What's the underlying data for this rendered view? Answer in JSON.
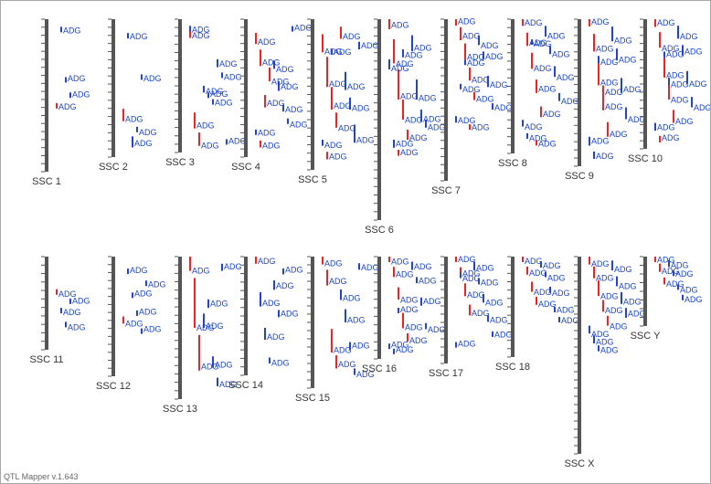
{
  "app": {
    "footer": "QTL Mapper v.1.643"
  },
  "colors": {
    "chromosome": "#555555",
    "tick": "#555555",
    "qtl_red": "#ee2222",
    "qtl_blue": "#2244cc",
    "label": "#1a44cc",
    "chr_label": "#333333"
  },
  "trait_label": "ADG",
  "chromosomes": [
    {
      "name": "SSC 1",
      "row": 0,
      "qtl": [
        [
          0.55,
          0.03,
          "r"
        ],
        [
          0.05,
          0.02,
          "b"
        ],
        [
          0.38,
          0.02,
          "b"
        ],
        [
          0.48,
          0.03,
          "b"
        ]
      ]
    },
    {
      "name": "SSC 2",
      "row": 0,
      "qtl": [
        [
          0.65,
          0.09,
          "r"
        ],
        [
          0.1,
          0.04,
          "b"
        ],
        [
          0.85,
          0.08,
          "b"
        ],
        [
          0.78,
          0.03,
          "b"
        ],
        [
          0.4,
          0.03,
          "b"
        ]
      ]
    },
    {
      "name": "SSC 3",
      "row": 0,
      "qtl": [
        [
          0.08,
          0.06,
          "r"
        ],
        [
          0.7,
          0.12,
          "r"
        ],
        [
          0.85,
          0.1,
          "r"
        ],
        [
          0.5,
          0.05,
          "b"
        ],
        [
          0.55,
          0.04,
          "b"
        ],
        [
          0.6,
          0.04,
          "b"
        ],
        [
          0.3,
          0.06,
          "b"
        ],
        [
          0.4,
          0.04,
          "b"
        ],
        [
          0.9,
          0.04,
          "b"
        ],
        [
          0.05,
          0.03,
          "b"
        ]
      ]
    },
    {
      "name": "SSC 4",
      "row": 0,
      "qtl": [
        [
          0.1,
          0.08,
          "r"
        ],
        [
          0.22,
          0.12,
          "r"
        ],
        [
          0.55,
          0.09,
          "r"
        ],
        [
          0.35,
          0.1,
          "r"
        ],
        [
          0.3,
          0.06,
          "b"
        ],
        [
          0.45,
          0.07,
          "b"
        ],
        [
          0.62,
          0.05,
          "b"
        ],
        [
          0.72,
          0.04,
          "b"
        ],
        [
          0.05,
          0.04,
          "b"
        ],
        [
          0.8,
          0.03,
          "b"
        ],
        [
          0.88,
          0.05,
          "r"
        ]
      ]
    },
    {
      "name": "SSC 5",
      "row": 0,
      "qtl": [
        [
          0.1,
          0.12,
          "r"
        ],
        [
          0.25,
          0.2,
          "r"
        ],
        [
          0.45,
          0.15,
          "r"
        ],
        [
          0.62,
          0.1,
          "r"
        ],
        [
          0.05,
          0.08,
          "r"
        ],
        [
          0.35,
          0.12,
          "b"
        ],
        [
          0.52,
          0.08,
          "b"
        ],
        [
          0.7,
          0.12,
          "b"
        ],
        [
          0.15,
          0.05,
          "b"
        ],
        [
          0.8,
          0.04,
          "b"
        ],
        [
          0.88,
          0.05,
          "r"
        ],
        [
          0.2,
          0.03,
          "b"
        ]
      ]
    },
    {
      "name": "SSC 6",
      "row": 0,
      "qtl": [
        [
          0.0,
          0.05,
          "r"
        ],
        [
          0.1,
          0.12,
          "r"
        ],
        [
          0.25,
          0.15,
          "r"
        ],
        [
          0.4,
          0.1,
          "r"
        ],
        [
          0.55,
          0.05,
          "r"
        ],
        [
          0.08,
          0.08,
          "b"
        ],
        [
          0.3,
          0.1,
          "b"
        ],
        [
          0.45,
          0.06,
          "b"
        ],
        [
          0.5,
          0.04,
          "b"
        ],
        [
          0.2,
          0.05,
          "b"
        ],
        [
          0.6,
          0.04,
          "b"
        ],
        [
          0.65,
          0.03,
          "r"
        ],
        [
          0.15,
          0.04,
          "b"
        ]
      ]
    },
    {
      "name": "SSC 7",
      "row": 0,
      "qtl": [
        [
          0.0,
          0.04,
          "r"
        ],
        [
          0.05,
          0.08,
          "r"
        ],
        [
          0.15,
          0.1,
          "r"
        ],
        [
          0.3,
          0.08,
          "r"
        ],
        [
          0.45,
          0.05,
          "r"
        ],
        [
          0.1,
          0.06,
          "b"
        ],
        [
          0.2,
          0.05,
          "b"
        ],
        [
          0.35,
          0.07,
          "b"
        ],
        [
          0.52,
          0.04,
          "b"
        ],
        [
          0.6,
          0.04,
          "b"
        ],
        [
          0.4,
          0.03,
          "b"
        ],
        [
          0.25,
          0.03,
          "b"
        ],
        [
          0.65,
          0.03,
          "r"
        ]
      ]
    },
    {
      "name": "SSC 8",
      "row": 0,
      "qtl": [
        [
          0.0,
          0.05,
          "r"
        ],
        [
          0.1,
          0.1,
          "r"
        ],
        [
          0.25,
          0.12,
          "r"
        ],
        [
          0.45,
          0.1,
          "r"
        ],
        [
          0.65,
          0.08,
          "r"
        ],
        [
          0.05,
          0.08,
          "b"
        ],
        [
          0.2,
          0.06,
          "b"
        ],
        [
          0.35,
          0.08,
          "b"
        ],
        [
          0.55,
          0.06,
          "b"
        ],
        [
          0.75,
          0.05,
          "b"
        ],
        [
          0.85,
          0.04,
          "b"
        ],
        [
          0.15,
          0.04,
          "b"
        ],
        [
          0.9,
          0.04,
          "r"
        ]
      ]
    },
    {
      "name": "SSC 9",
      "row": 0,
      "qtl": [
        [
          0.0,
          0.05,
          "r"
        ],
        [
          0.1,
          0.12,
          "r"
        ],
        [
          0.3,
          0.15,
          "r"
        ],
        [
          0.5,
          0.12,
          "r"
        ],
        [
          0.7,
          0.1,
          "r"
        ],
        [
          0.05,
          0.1,
          "b"
        ],
        [
          0.2,
          0.08,
          "b"
        ],
        [
          0.4,
          0.1,
          "b"
        ],
        [
          0.6,
          0.08,
          "b"
        ],
        [
          0.8,
          0.06,
          "b"
        ],
        [
          0.9,
          0.05,
          "b"
        ],
        [
          0.25,
          0.05,
          "b"
        ],
        [
          0.45,
          0.06,
          "r"
        ]
      ]
    },
    {
      "name": "SSC 10",
      "row": 0,
      "qtl": [
        [
          0.0,
          0.06,
          "r"
        ],
        [
          0.1,
          0.12,
          "r"
        ],
        [
          0.3,
          0.15,
          "r"
        ],
        [
          0.5,
          0.12,
          "r"
        ],
        [
          0.7,
          0.1,
          "r"
        ],
        [
          0.05,
          0.1,
          "b"
        ],
        [
          0.2,
          0.08,
          "b"
        ],
        [
          0.4,
          0.1,
          "b"
        ],
        [
          0.6,
          0.08,
          "b"
        ],
        [
          0.8,
          0.06,
          "b"
        ],
        [
          0.9,
          0.05,
          "r"
        ],
        [
          0.25,
          0.05,
          "b"
        ],
        [
          0.45,
          0.06,
          "b"
        ]
      ]
    },
    {
      "name": "SSC 11",
      "row": 1,
      "qtl": [
        [
          0.35,
          0.05,
          "r"
        ],
        [
          0.55,
          0.05,
          "b"
        ],
        [
          0.7,
          0.04,
          "b"
        ],
        [
          0.45,
          0.03,
          "b"
        ]
      ]
    },
    {
      "name": "SSC 12",
      "row": 1,
      "qtl": [
        [
          0.5,
          0.06,
          "r"
        ],
        [
          0.1,
          0.04,
          "b"
        ],
        [
          0.3,
          0.03,
          "b"
        ],
        [
          0.45,
          0.04,
          "b"
        ],
        [
          0.6,
          0.03,
          "b"
        ],
        [
          0.2,
          0.03,
          "b"
        ]
      ]
    },
    {
      "name": "SSC 13",
      "row": 1,
      "qtl": [
        [
          0.0,
          0.1,
          "r"
        ],
        [
          0.15,
          0.35,
          "r"
        ],
        [
          0.55,
          0.25,
          "r"
        ],
        [
          0.4,
          0.1,
          "b"
        ],
        [
          0.3,
          0.06,
          "b"
        ],
        [
          0.7,
          0.08,
          "b"
        ],
        [
          0.85,
          0.06,
          "b"
        ],
        [
          0.05,
          0.05,
          "b"
        ]
      ]
    },
    {
      "name": "SSC 14",
      "row": 1,
      "qtl": [
        [
          0.0,
          0.06,
          "r"
        ],
        [
          0.3,
          0.12,
          "b"
        ],
        [
          0.6,
          0.1,
          "b"
        ],
        [
          0.85,
          0.05,
          "b"
        ],
        [
          0.2,
          0.08,
          "b"
        ],
        [
          0.45,
          0.06,
          "b"
        ],
        [
          0.1,
          0.05,
          "b"
        ]
      ]
    },
    {
      "name": "SSC 15",
      "row": 1,
      "qtl": [
        [
          0.0,
          0.06,
          "r"
        ],
        [
          0.1,
          0.12,
          "r"
        ],
        [
          0.55,
          0.18,
          "r"
        ],
        [
          0.75,
          0.1,
          "r"
        ],
        [
          0.25,
          0.08,
          "b"
        ],
        [
          0.4,
          0.1,
          "b"
        ],
        [
          0.65,
          0.06,
          "b"
        ],
        [
          0.85,
          0.05,
          "b"
        ],
        [
          0.05,
          0.05,
          "b"
        ]
      ]
    },
    {
      "name": "SSC 16",
      "row": 1,
      "qtl": [
        [
          0.0,
          0.05,
          "r"
        ],
        [
          0.1,
          0.1,
          "r"
        ],
        [
          0.3,
          0.12,
          "r"
        ],
        [
          0.55,
          0.15,
          "r"
        ],
        [
          0.75,
          0.08,
          "r"
        ],
        [
          0.05,
          0.08,
          "b"
        ],
        [
          0.2,
          0.06,
          "b"
        ],
        [
          0.4,
          0.08,
          "b"
        ],
        [
          0.65,
          0.06,
          "b"
        ],
        [
          0.85,
          0.05,
          "b"
        ],
        [
          0.9,
          0.04,
          "b"
        ],
        [
          0.5,
          0.04,
          "b"
        ]
      ]
    },
    {
      "name": "SSC 17",
      "row": 1,
      "qtl": [
        [
          0.0,
          0.05,
          "r"
        ],
        [
          0.1,
          0.1,
          "r"
        ],
        [
          0.25,
          0.12,
          "r"
        ],
        [
          0.45,
          0.1,
          "r"
        ],
        [
          0.05,
          0.08,
          "b"
        ],
        [
          0.2,
          0.06,
          "b"
        ],
        [
          0.35,
          0.08,
          "b"
        ],
        [
          0.55,
          0.06,
          "b"
        ],
        [
          0.7,
          0.05,
          "b"
        ],
        [
          0.8,
          0.04,
          "b"
        ],
        [
          0.15,
          0.04,
          "b"
        ]
      ]
    },
    {
      "name": "SSC 18",
      "row": 1,
      "qtl": [
        [
          0.0,
          0.05,
          "r"
        ],
        [
          0.1,
          0.08,
          "r"
        ],
        [
          0.25,
          0.1,
          "r"
        ],
        [
          0.4,
          0.08,
          "r"
        ],
        [
          0.05,
          0.06,
          "b"
        ],
        [
          0.15,
          0.05,
          "b"
        ],
        [
          0.3,
          0.06,
          "b"
        ],
        [
          0.5,
          0.05,
          "b"
        ],
        [
          0.6,
          0.04,
          "b"
        ]
      ]
    },
    {
      "name": "SSC X",
      "row": 1,
      "qtl": [
        [
          0.0,
          0.04,
          "r"
        ],
        [
          0.05,
          0.06,
          "r"
        ],
        [
          0.12,
          0.08,
          "r"
        ],
        [
          0.22,
          0.06,
          "r"
        ],
        [
          0.3,
          0.05,
          "r"
        ],
        [
          0.02,
          0.05,
          "b"
        ],
        [
          0.1,
          0.05,
          "b"
        ],
        [
          0.18,
          0.06,
          "b"
        ],
        [
          0.26,
          0.05,
          "b"
        ],
        [
          0.35,
          0.04,
          "b"
        ],
        [
          0.4,
          0.04,
          "b"
        ],
        [
          0.45,
          0.03,
          "b"
        ]
      ]
    },
    {
      "name": "SSC Y",
      "row": 1,
      "qtl": [
        [
          0.0,
          0.08,
          "r"
        ],
        [
          0.1,
          0.12,
          "r"
        ],
        [
          0.3,
          0.1,
          "r"
        ],
        [
          0.05,
          0.1,
          "b"
        ],
        [
          0.2,
          0.08,
          "b"
        ],
        [
          0.4,
          0.06,
          "b"
        ],
        [
          0.55,
          0.05,
          "b"
        ]
      ]
    }
  ]
}
